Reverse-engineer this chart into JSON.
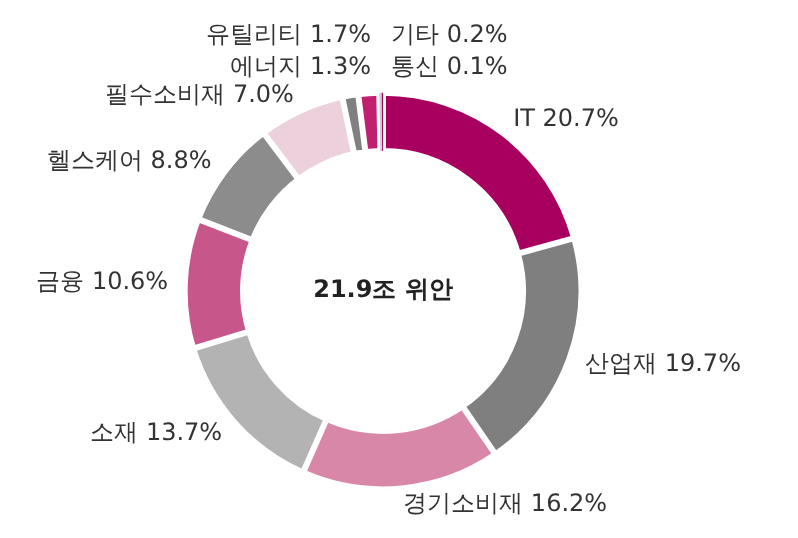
{
  "chart_data": {
    "type": "donut",
    "categories": [
      "IT",
      "산업재",
      "경기소비재",
      "소재",
      "금융",
      "헬스케어",
      "필수소비재",
      "에너지",
      "유틸리티",
      "기타",
      "통신"
    ],
    "values": [
      20.7,
      19.7,
      16.2,
      13.7,
      10.6,
      8.8,
      7.0,
      1.3,
      1.7,
      0.2,
      0.1
    ],
    "value_labels": [
      "20.7%",
      "19.7%",
      "16.2%",
      "13.7%",
      "10.6%",
      "8.8%",
      "7.0%",
      "1.3%",
      "1.7%",
      "0.2%",
      "0.1%"
    ],
    "colors": [
      "#a8005f",
      "#7f7f7f",
      "#d987a9",
      "#b3b3b3",
      "#c7578a",
      "#8c8c8c",
      "#ecd0dc",
      "#808080",
      "#c0206f",
      "#d0d0d0",
      "#a8005f"
    ],
    "annotations": [
      "21.9조 위안"
    ],
    "legend": false
  }
}
